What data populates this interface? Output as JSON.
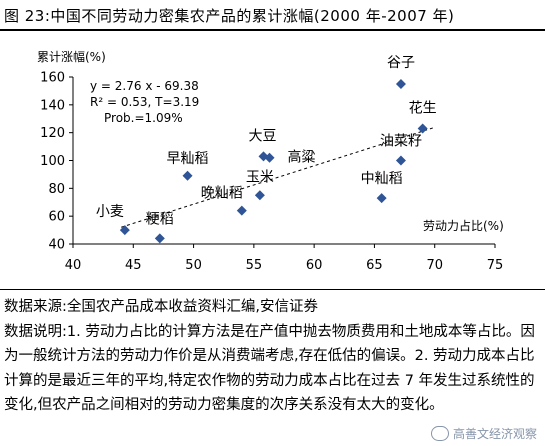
{
  "header": {
    "title": "图 23:中国不同劳动力密集农产品的累计涨幅(2000 年-2007 年)"
  },
  "chart_data": {
    "type": "scatter",
    "title": "",
    "xlabel": "劳动力占比(%)",
    "ylabel": "累计涨幅(%)",
    "xlim": [
      40,
      75
    ],
    "ylim": [
      40,
      160
    ],
    "xticks": [
      "40",
      "45",
      "50",
      "55",
      "60",
      "65",
      "70",
      "75"
    ],
    "yticks": [
      "40",
      "60",
      "80",
      "100",
      "120",
      "140",
      "160"
    ],
    "grid": false,
    "point_color": "#2f5597",
    "points": [
      {
        "label": "小麦",
        "x": 44.3,
        "y": 50
      },
      {
        "label": "粳稻",
        "x": 47.2,
        "y": 44
      },
      {
        "label": "早籼稻",
        "x": 49.5,
        "y": 89
      },
      {
        "label": "晚籼稻",
        "x": 54.0,
        "y": 64
      },
      {
        "label": "玉米",
        "x": 55.5,
        "y": 75
      },
      {
        "label": "大豆",
        "x": 55.8,
        "y": 103
      },
      {
        "label": "高粱",
        "x": 56.3,
        "y": 102
      },
      {
        "label": "中籼稻",
        "x": 65.6,
        "y": 73
      },
      {
        "label": "油菜籽",
        "x": 67.2,
        "y": 100
      },
      {
        "label": "谷子",
        "x": 67.2,
        "y": 155
      },
      {
        "label": "花生",
        "x": 69.0,
        "y": 123
      }
    ],
    "trendline": {
      "slope": 2.76,
      "intercept": -69.38,
      "x_range": [
        44,
        70
      ]
    },
    "annotations": [
      "y = 2.76 x - 69.38",
      "R² = 0.53, T=3.19",
      "Prob.=1.09%"
    ]
  },
  "notes": {
    "source": "数据来源:全国农产品成本收益资料汇编,安信证券",
    "explanation": "数据说明:1. 劳动力占比的计算方法是在产值中抛去物质费用和土地成本等占比。因为一般统计方法的劳动力作价是从消费端考虑,存在低估的偏误。2. 劳动力成本占比计算的是最近三年的平均,特定农作物的劳动力成本占比在过去 7 年发生过系统性的变化,但农产品之间相对的劳动力密集度的次序关系没有太大的变化。"
  },
  "watermark": {
    "text": "高善文经济观察"
  }
}
